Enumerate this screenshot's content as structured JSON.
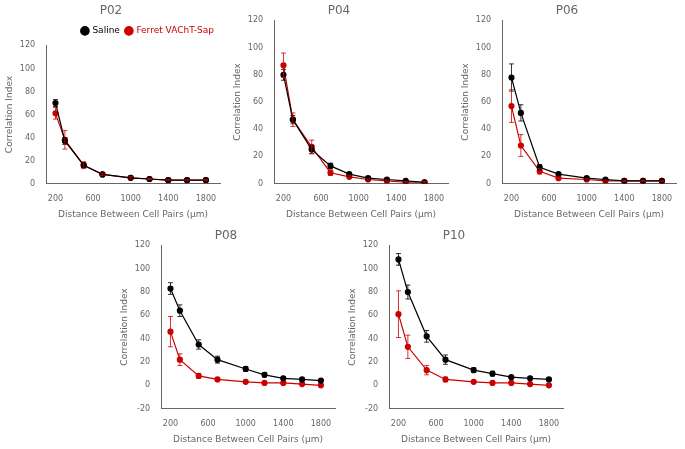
{
  "chart_data": [
    {
      "type": "line",
      "title": "P02",
      "x": [
        200,
        300,
        500,
        700,
        1000,
        1200,
        1400,
        1600,
        1800
      ],
      "series": [
        {
          "name": "Saline",
          "color": "#000000",
          "values": [
            70,
            37,
            16,
            8,
            5,
            4,
            3,
            3,
            3
          ],
          "errors": [
            3,
            3,
            2,
            1,
            1,
            1,
            0.5,
            0.5,
            0.5
          ]
        },
        {
          "name": "Ferret VAChT-Sap",
          "color": "#cc0000",
          "values": [
            61,
            38,
            16,
            8,
            5,
            4,
            3,
            3,
            3
          ],
          "errors": [
            5,
            8,
            3,
            1,
            1,
            0.5,
            0.5,
            0.5,
            0.5
          ]
        }
      ],
      "xlabel": "Distance Between Cell Pairs (μm)",
      "ylabel": "Correlation Index",
      "xlim": [
        100,
        1950
      ],
      "xticks": [
        200,
        600,
        1000,
        1400,
        1800
      ],
      "ylim": [
        0,
        120
      ],
      "yticks": [
        0,
        20,
        40,
        60,
        80,
        100,
        120
      ],
      "grid": false,
      "marker": "circle",
      "legend": "upper right"
    },
    {
      "type": "line",
      "title": "P04",
      "x": [
        200,
        300,
        500,
        700,
        900,
        1100,
        1300,
        1500,
        1700
      ],
      "series": [
        {
          "name": "Saline",
          "color": "#000000",
          "values": [
            80,
            47,
            25,
            13,
            7,
            4,
            3,
            2,
            1
          ],
          "errors": [
            4,
            3,
            3,
            2,
            1,
            1,
            0.5,
            0.5,
            0.5
          ]
        },
        {
          "name": "Ferret VAChT-Sap",
          "color": "#cc0000",
          "values": [
            87,
            47,
            27,
            8,
            5,
            3,
            2,
            1,
            1
          ],
          "errors": [
            9,
            5,
            5,
            2,
            1,
            0.5,
            0.5,
            0.5,
            0.5
          ]
        }
      ],
      "xlabel": "Distance Between Cell Pairs (μm)",
      "ylabel": "Correlation Index",
      "xlim": [
        100,
        1950
      ],
      "xticks": [
        200,
        600,
        1000,
        1400,
        1800
      ],
      "ylim": [
        0,
        120
      ],
      "yticks": [
        0,
        20,
        40,
        60,
        80,
        100,
        120
      ],
      "grid": false,
      "marker": "circle"
    },
    {
      "type": "line",
      "title": "P06",
      "x": [
        200,
        300,
        500,
        700,
        1000,
        1200,
        1400,
        1600,
        1800
      ],
      "series": [
        {
          "name": "Saline",
          "color": "#000000",
          "values": [
            78,
            52,
            12,
            7,
            4,
            3,
            2,
            2,
            2
          ],
          "errors": [
            10,
            6,
            2,
            1,
            1,
            0.5,
            0.5,
            0.5,
            0.5
          ]
        },
        {
          "name": "Ferret VAChT-Sap",
          "color": "#cc0000",
          "values": [
            57,
            28,
            9,
            4,
            3,
            2,
            2,
            2,
            2
          ],
          "errors": [
            12,
            8,
            2,
            1,
            0.5,
            0.5,
            0.5,
            0.5,
            0.5
          ]
        }
      ],
      "xlabel": "Distance Between Cell Pairs (μm)",
      "ylabel": "Correlation Index",
      "xlim": [
        100,
        1950
      ],
      "xticks": [
        200,
        600,
        1000,
        1400,
        1800
      ],
      "ylim": [
        0,
        120
      ],
      "yticks": [
        0,
        20,
        40,
        60,
        80,
        100,
        120
      ],
      "grid": false,
      "marker": "circle"
    },
    {
      "type": "line",
      "title": "P08",
      "x": [
        200,
        300,
        500,
        700,
        1000,
        1200,
        1400,
        1600,
        1800
      ],
      "series": [
        {
          "name": "Saline",
          "color": "#000000",
          "values": [
            83,
            64,
            35,
            22,
            14,
            9,
            6,
            5,
            4
          ],
          "errors": [
            5,
            5,
            4,
            3,
            2,
            2,
            1,
            1,
            1
          ]
        },
        {
          "name": "Ferret VAChT-Sap",
          "color": "#cc0000",
          "values": [
            46,
            22,
            8,
            5,
            3,
            2,
            2,
            1,
            0
          ],
          "errors": [
            13,
            5,
            2,
            1,
            1,
            0.5,
            0.5,
            0.5,
            0.5
          ]
        }
      ],
      "xlabel": "Distance Between Cell Pairs (μm)",
      "ylabel": "Correlation Index",
      "xlim": [
        100,
        1950
      ],
      "xticks": [
        200,
        600,
        1000,
        1400,
        1800
      ],
      "ylim": [
        -20,
        120
      ],
      "yticks": [
        -20,
        0,
        20,
        40,
        60,
        80,
        100,
        120
      ],
      "grid": false,
      "marker": "circle"
    },
    {
      "type": "line",
      "title": "P10",
      "x": [
        200,
        300,
        500,
        700,
        1000,
        1200,
        1400,
        1600,
        1800
      ],
      "series": [
        {
          "name": "Saline",
          "color": "#000000",
          "values": [
            108,
            80,
            42,
            22,
            13,
            10,
            7,
            6,
            5
          ],
          "errors": [
            5,
            6,
            5,
            4,
            2,
            2,
            1,
            1,
            1
          ]
        },
        {
          "name": "Ferret VAChT-Sap",
          "color": "#cc0000",
          "values": [
            61,
            33,
            13,
            5,
            3,
            2,
            2,
            1,
            0
          ],
          "errors": [
            20,
            10,
            4,
            2,
            1,
            0.5,
            0.5,
            0.5,
            0.5
          ]
        }
      ],
      "xlabel": "Distance Between Cell Pairs (μm)",
      "ylabel": "Correlation Index",
      "xlim": [
        100,
        1950
      ],
      "xticks": [
        200,
        600,
        1000,
        1400,
        1800
      ],
      "ylim": [
        -20,
        120
      ],
      "yticks": [
        -20,
        0,
        20,
        40,
        60,
        80,
        100,
        120
      ],
      "grid": false,
      "marker": "circle"
    }
  ]
}
